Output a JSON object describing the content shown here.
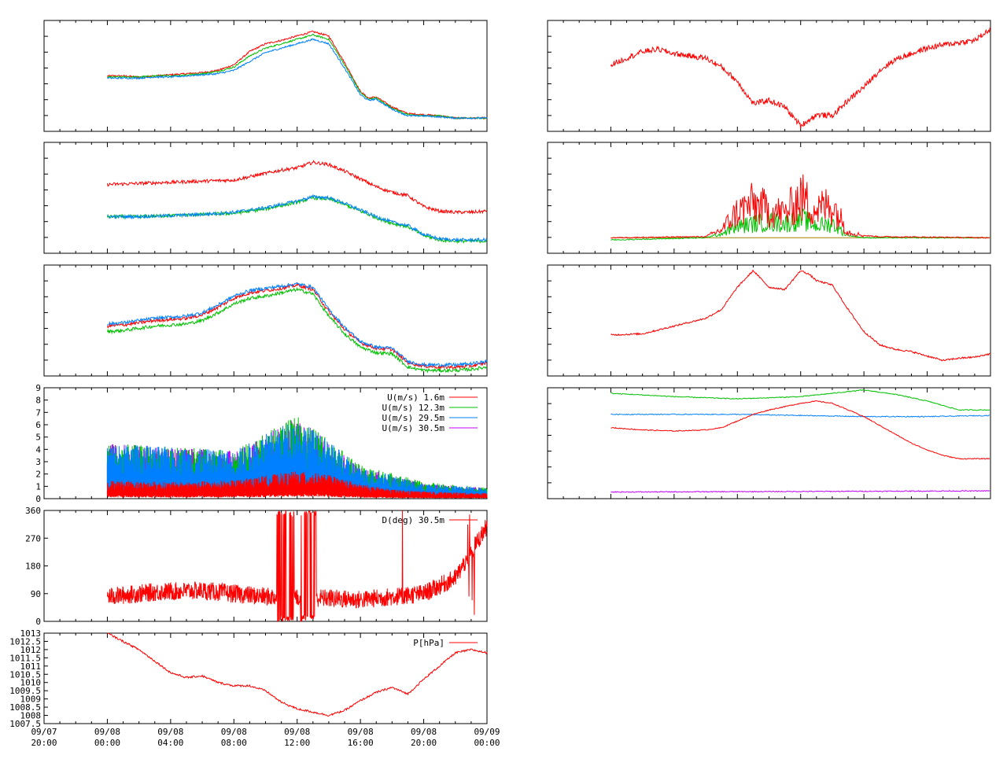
{
  "time_axis": {
    "ticks": [
      {
        "date": "09/07",
        "time": "20:00"
      },
      {
        "date": "09/08",
        "time": "00:00"
      },
      {
        "date": "09/08",
        "time": "04:00"
      },
      {
        "date": "09/08",
        "time": "08:00"
      },
      {
        "date": "09/08",
        "time": "12:00"
      },
      {
        "date": "09/08",
        "time": "16:00"
      },
      {
        "date": "09/08",
        "time": "20:00"
      },
      {
        "date": "09/09",
        "time": "00:00"
      }
    ],
    "range_hours": [
      0,
      28
    ],
    "note_hours_from": "09/07 20:00"
  },
  "colors": {
    "red": "#ff0000",
    "green": "#00c000",
    "blue": "#0080ff",
    "purple": "#c000ff",
    "olive": "#a08000"
  },
  "chart_data": [
    {
      "type": "line",
      "panel": "left-1",
      "x_hours": [
        4,
        5,
        6,
        7,
        8,
        9,
        10,
        11,
        12,
        13,
        14,
        15,
        16,
        17,
        18,
        19,
        20,
        20.5,
        21,
        22,
        23,
        24,
        25,
        26,
        27,
        28
      ],
      "series": [
        {
          "color": "red",
          "values": [
            50,
            50,
            49,
            50,
            51,
            52,
            53,
            55,
            60,
            72,
            79,
            82,
            86,
            90,
            86,
            62,
            36,
            30,
            31,
            22,
            16,
            15,
            14,
            12,
            12,
            12
          ]
        },
        {
          "color": "green",
          "values": [
            49,
            49,
            49,
            50,
            50,
            51,
            52,
            54,
            58,
            68,
            75,
            79,
            83,
            87,
            83,
            60,
            35,
            29,
            30,
            21,
            15,
            14,
            14,
            12,
            12,
            12
          ]
        },
        {
          "color": "blue",
          "values": [
            48,
            48,
            48,
            49,
            49,
            50,
            51,
            52,
            55,
            63,
            71,
            75,
            79,
            83,
            79,
            57,
            33,
            28,
            29,
            20,
            14,
            14,
            13,
            12,
            12,
            12
          ]
        }
      ],
      "ylim": [
        0,
        100
      ]
    },
    {
      "type": "line",
      "panel": "left-2",
      "x_hours": [
        4,
        6,
        8,
        10,
        12,
        14,
        15,
        16,
        17,
        18,
        19,
        20,
        21,
        22,
        23,
        24,
        25,
        26,
        27,
        28
      ],
      "series": [
        {
          "color": "red",
          "values": [
            62,
            63,
            64,
            65,
            66,
            72,
            75,
            77,
            82,
            80,
            74,
            67,
            60,
            55,
            52,
            42,
            38,
            37,
            37,
            38
          ]
        },
        {
          "color": "green",
          "values": [
            33,
            33,
            34,
            35,
            36,
            40,
            43,
            46,
            50,
            49,
            44,
            38,
            32,
            27,
            24,
            16,
            12,
            11,
            11,
            11
          ]
        },
        {
          "color": "blue",
          "values": [
            33,
            33,
            34,
            35,
            37,
            41,
            44,
            47,
            51,
            50,
            45,
            39,
            33,
            28,
            25,
            17,
            13,
            12,
            12,
            12
          ]
        }
      ],
      "ylim": [
        0,
        100
      ]
    },
    {
      "type": "line",
      "panel": "left-3",
      "x_hours": [
        4,
        5,
        6,
        7,
        8,
        9,
        10,
        11,
        12,
        13,
        14,
        15,
        16,
        17,
        18,
        19,
        20,
        21,
        22,
        23,
        24,
        25,
        26,
        27,
        28
      ],
      "series": [
        {
          "color": "red",
          "values": [
            45,
            46,
            48,
            50,
            51,
            52,
            55,
            62,
            70,
            75,
            77,
            79,
            82,
            78,
            58,
            42,
            30,
            25,
            24,
            12,
            9,
            8,
            8,
            9,
            12
          ]
        },
        {
          "color": "green",
          "values": [
            40,
            41,
            43,
            45,
            46,
            47,
            50,
            57,
            65,
            70,
            72,
            75,
            78,
            74,
            54,
            38,
            26,
            21,
            20,
            8,
            5,
            5,
            5,
            6,
            8
          ]
        },
        {
          "color": "blue",
          "values": [
            47,
            48,
            50,
            52,
            53,
            54,
            57,
            64,
            72,
            77,
            79,
            81,
            83,
            80,
            60,
            44,
            31,
            26,
            25,
            13,
            10,
            10,
            10,
            11,
            13
          ]
        }
      ],
      "ylim": [
        0,
        100
      ]
    },
    {
      "type": "line",
      "panel": "left-4",
      "x_hours_start": 4,
      "x_hours_end": 28,
      "ylim": [
        0,
        9
      ],
      "yticks": [
        0,
        1,
        2,
        3,
        4,
        5,
        6,
        7,
        8,
        9
      ],
      "legend_position": "top-right",
      "series": [
        {
          "name": "U(m/s)  1.6m",
          "color": "red",
          "envelope": [
            [
              4,
              1.0
            ],
            [
              8,
              0.9
            ],
            [
              12,
              1.0
            ],
            [
              16,
              1.5
            ],
            [
              18,
              1.3
            ],
            [
              20,
              0.8
            ],
            [
              22,
              0.5
            ],
            [
              24,
              0.4
            ],
            [
              28,
              0.3
            ]
          ]
        },
        {
          "name": "U(m/s) 12.3m",
          "color": "green",
          "envelope": [
            [
              4,
              3.0
            ],
            [
              8,
              2.8
            ],
            [
              12,
              2.6
            ],
            [
              16,
              4.5
            ],
            [
              18,
              3.2
            ],
            [
              20,
              1.8
            ],
            [
              22,
              1.4
            ],
            [
              24,
              0.9
            ],
            [
              28,
              0.6
            ]
          ]
        },
        {
          "name": "U(m/s) 29.5m",
          "color": "blue",
          "envelope": [
            [
              4,
              3.0
            ],
            [
              8,
              2.8
            ],
            [
              12,
              2.6
            ],
            [
              16,
              4.4
            ],
            [
              18,
              3.1
            ],
            [
              20,
              1.7
            ],
            [
              22,
              1.3
            ],
            [
              24,
              0.8
            ],
            [
              28,
              0.6
            ]
          ]
        },
        {
          "name": "U(m/s) 30.5m",
          "color": "purple",
          "envelope": [
            [
              4,
              3.0
            ],
            [
              8,
              2.8
            ],
            [
              12,
              2.6
            ],
            [
              16,
              4.4
            ],
            [
              18,
              3.1
            ],
            [
              20,
              1.7
            ],
            [
              22,
              1.3
            ],
            [
              24,
              0.8
            ],
            [
              28,
              0.6
            ]
          ]
        }
      ]
    },
    {
      "type": "line",
      "panel": "left-5",
      "x_hours_start": 4,
      "x_hours_end": 28,
      "ylim": [
        0,
        360
      ],
      "yticks": [
        0,
        90,
        180,
        270,
        360
      ],
      "legend_position": "top-right",
      "series": [
        {
          "name": "D(deg) 30.5m",
          "color": "red",
          "baseline": [
            [
              4,
              80
            ],
            [
              7,
              95
            ],
            [
              10,
              100
            ],
            [
              12,
              90
            ],
            [
              14,
              80
            ],
            [
              18,
              75
            ],
            [
              20,
              70
            ],
            [
              22,
              80
            ],
            [
              24,
              90
            ],
            [
              26,
              140
            ],
            [
              28,
              310
            ]
          ]
        }
      ]
    },
    {
      "type": "line",
      "panel": "left-6",
      "x_hours_start": 4,
      "x_hours_end": 28,
      "ylim": [
        1007.5,
        1013
      ],
      "yticks": [
        "1007.5",
        "1008",
        "1008.5",
        "1009",
        "1009.5",
        "1010",
        "1010.5",
        "1011",
        "1011.5",
        "1012",
        "1012.5",
        "1013"
      ],
      "legend_position": "top-right",
      "series": [
        {
          "name": "P[hPa]",
          "color": "red",
          "x": [
            4,
            5,
            6,
            7,
            8,
            9,
            10,
            11,
            12,
            13,
            14,
            15,
            16,
            17,
            18,
            19,
            20,
            21,
            22,
            23,
            24,
            25,
            26,
            27,
            28
          ],
          "values": [
            1013,
            1012.5,
            1012,
            1011.3,
            1010.6,
            1010.3,
            1010.4,
            1010.0,
            1009.8,
            1009.8,
            1009.5,
            1008.8,
            1008.4,
            1008.2,
            1008.0,
            1008.3,
            1008.9,
            1009.4,
            1009.7,
            1009.3,
            1010.2,
            1011.0,
            1011.8,
            1012.0,
            1011.8
          ]
        }
      ]
    },
    {
      "type": "line",
      "panel": "right-1",
      "x_hours_start": 4,
      "x_hours_end": 28,
      "ylim": [
        0,
        100
      ],
      "series": [
        {
          "color": "red",
          "x": [
            4,
            5,
            6,
            7,
            8,
            9,
            10,
            11,
            12,
            13,
            14,
            15,
            16,
            17,
            18,
            19,
            20,
            21,
            22,
            23,
            24,
            25,
            26,
            27,
            28
          ],
          "values": [
            60,
            66,
            72,
            74,
            70,
            68,
            66,
            58,
            45,
            25,
            28,
            22,
            5,
            15,
            14,
            28,
            40,
            55,
            65,
            70,
            75,
            78,
            80,
            82,
            92
          ]
        }
      ]
    },
    {
      "type": "line",
      "panel": "right-2",
      "x_hours_start": 4,
      "x_hours_end": 28,
      "ylim": [
        0,
        100
      ],
      "series": [
        {
          "color": "olive",
          "values_note": "flat baseline",
          "baseline": [
            [
              4,
              14
            ],
            [
              28,
              14
            ]
          ]
        },
        {
          "color": "green",
          "envelope": [
            [
              4,
              12
            ],
            [
              10,
              14
            ],
            [
              11,
              18
            ],
            [
              12,
              25
            ],
            [
              13,
              28
            ],
            [
              14,
              30
            ],
            [
              15,
              28
            ],
            [
              16,
              33
            ],
            [
              17,
              26
            ],
            [
              18,
              28
            ],
            [
              19,
              16
            ],
            [
              20,
              14
            ],
            [
              28,
              14
            ]
          ]
        },
        {
          "color": "red",
          "envelope": [
            [
              4,
              14
            ],
            [
              10,
              15
            ],
            [
              11,
              22
            ],
            [
              12,
              40
            ],
            [
              13,
              48
            ],
            [
              14,
              42
            ],
            [
              15,
              38
            ],
            [
              16,
              55
            ],
            [
              17,
              42
            ],
            [
              18,
              48
            ],
            [
              19,
              20
            ],
            [
              20,
              16
            ],
            [
              21,
              15
            ],
            [
              28,
              14
            ]
          ]
        }
      ]
    },
    {
      "type": "line",
      "panel": "right-3",
      "x_hours_start": 4,
      "x_hours_end": 28,
      "ylim": [
        0,
        100
      ],
      "series": [
        {
          "color": "red",
          "x": [
            4,
            6,
            8,
            10,
            11,
            12,
            13,
            14,
            15,
            16,
            16.5,
            17,
            18,
            19,
            20,
            21,
            22,
            23,
            24,
            25,
            26,
            27,
            28
          ],
          "values": [
            37,
            38,
            45,
            52,
            60,
            80,
            95,
            80,
            78,
            95,
            92,
            86,
            82,
            60,
            40,
            28,
            24,
            22,
            18,
            14,
            16,
            17,
            20
          ]
        }
      ]
    },
    {
      "type": "line",
      "panel": "right-4",
      "x_hours_start": 4,
      "x_hours_end": 28,
      "ylim": [
        0,
        100
      ],
      "series": [
        {
          "color": "green",
          "x": [
            4,
            8,
            12,
            16,
            20,
            22,
            24,
            26,
            28
          ],
          "values": [
            95,
            92,
            90,
            92,
            98,
            94,
            88,
            80,
            80
          ]
        },
        {
          "color": "blue",
          "x": [
            4,
            8,
            12,
            16,
            20,
            24,
            28
          ],
          "values": [
            76,
            76,
            76,
            75,
            74,
            74,
            75
          ]
        },
        {
          "color": "red",
          "x": [
            4,
            6,
            8,
            10,
            11,
            12,
            13,
            14,
            15,
            16,
            17,
            18,
            19,
            20,
            21,
            22,
            23,
            24,
            25,
            26,
            27,
            28
          ],
          "values": [
            64,
            62,
            61,
            62,
            64,
            70,
            76,
            80,
            83,
            86,
            88,
            86,
            80,
            74,
            66,
            58,
            50,
            44,
            39,
            36,
            36,
            36
          ]
        },
        {
          "color": "purple",
          "x": [
            4,
            28
          ],
          "values": [
            6,
            7
          ]
        }
      ]
    }
  ]
}
